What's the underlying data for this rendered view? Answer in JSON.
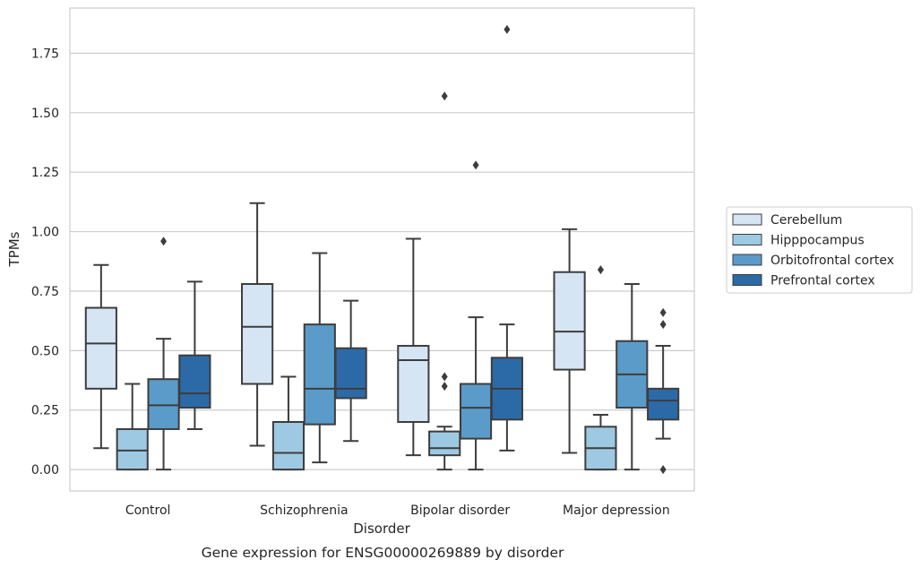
{
  "chart_data": {
    "type": "box",
    "title": "",
    "caption": "Gene expression for ENSG00000269889 by disorder",
    "xlabel": "Disorder",
    "ylabel": "TPMs",
    "ylim": [
      -0.09,
      1.94
    ],
    "yticks": [
      "0.00",
      "0.25",
      "0.50",
      "0.75",
      "1.00",
      "1.25",
      "1.50",
      "1.75"
    ],
    "grid": true,
    "legend_position": "right",
    "categories": [
      "Control",
      "Schizophrenia",
      "Bipolar disorder",
      "Major depression"
    ],
    "series": [
      {
        "name": "Cerebellum",
        "color": "#d6e5f4",
        "boxes": [
          {
            "whislo": 0.09,
            "q1": 0.34,
            "med": 0.53,
            "q3": 0.68,
            "whishi": 0.86,
            "fliers": []
          },
          {
            "whislo": 0.1,
            "q1": 0.36,
            "med": 0.6,
            "q3": 0.78,
            "whishi": 1.12,
            "fliers": []
          },
          {
            "whislo": 0.06,
            "q1": 0.2,
            "med": 0.46,
            "q3": 0.52,
            "whishi": 0.97,
            "fliers": []
          },
          {
            "whislo": 0.07,
            "q1": 0.42,
            "med": 0.58,
            "q3": 0.83,
            "whishi": 1.01,
            "fliers": []
          }
        ]
      },
      {
        "name": "Hipppocampus",
        "color": "#9ec9e2",
        "boxes": [
          {
            "whislo": 0.0,
            "q1": 0.0,
            "med": 0.08,
            "q3": 0.17,
            "whishi": 0.36,
            "fliers": []
          },
          {
            "whislo": 0.0,
            "q1": 0.0,
            "med": 0.07,
            "q3": 0.2,
            "whishi": 0.39,
            "fliers": []
          },
          {
            "whislo": 0.0,
            "q1": 0.06,
            "med": 0.09,
            "q3": 0.16,
            "whishi": 0.18,
            "fliers": [
              0.35,
              0.39,
              1.57
            ]
          },
          {
            "whislo": 0.0,
            "q1": 0.0,
            "med": 0.09,
            "q3": 0.18,
            "whishi": 0.23,
            "fliers": [
              0.84
            ]
          }
        ]
      },
      {
        "name": "Orbitofrontal cortex",
        "color": "#5a9bc9",
        "boxes": [
          {
            "whislo": 0.0,
            "q1": 0.17,
            "med": 0.27,
            "q3": 0.38,
            "whishi": 0.55,
            "fliers": [
              0.96
            ]
          },
          {
            "whislo": 0.03,
            "q1": 0.19,
            "med": 0.34,
            "q3": 0.61,
            "whishi": 0.91,
            "fliers": []
          },
          {
            "whislo": 0.0,
            "q1": 0.13,
            "med": 0.26,
            "q3": 0.36,
            "whishi": 0.64,
            "fliers": [
              1.28
            ]
          },
          {
            "whislo": 0.0,
            "q1": 0.26,
            "med": 0.4,
            "q3": 0.54,
            "whishi": 0.78,
            "fliers": []
          }
        ]
      },
      {
        "name": "Prefrontal cortex",
        "color": "#2c6aa7",
        "boxes": [
          {
            "whislo": 0.17,
            "q1": 0.26,
            "med": 0.32,
            "q3": 0.48,
            "whishi": 0.79,
            "fliers": []
          },
          {
            "whislo": 0.12,
            "q1": 0.3,
            "med": 0.34,
            "q3": 0.51,
            "whishi": 0.71,
            "fliers": []
          },
          {
            "whislo": 0.08,
            "q1": 0.21,
            "med": 0.34,
            "q3": 0.47,
            "whishi": 0.61,
            "fliers": [
              1.85
            ]
          },
          {
            "whislo": 0.13,
            "q1": 0.21,
            "med": 0.29,
            "q3": 0.34,
            "whishi": 0.52,
            "fliers": [
              0.0,
              0.61,
              0.66
            ]
          }
        ]
      }
    ]
  }
}
